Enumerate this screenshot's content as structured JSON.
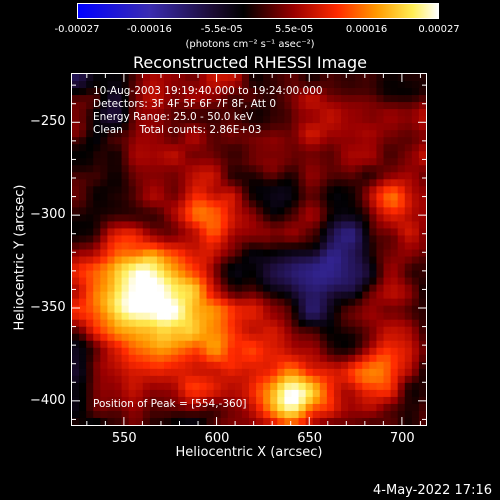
{
  "colorbar": {
    "ticks": [
      "-0.00027",
      "-0.00016",
      "-5.5e-05",
      "5.5e-05",
      "0.00016",
      "0.00027"
    ],
    "units": "(photons cm⁻² s⁻¹ asec⁻²)",
    "colors": [
      "#0000ff",
      "#000000",
      "#ff0000",
      "#ff9900",
      "#ffff88",
      "#ffffff"
    ]
  },
  "chart_data": {
    "type": "heatmap",
    "title": "Reconstructed RHESSI Image",
    "xlabel": "Heliocentric X (arcsec)",
    "ylabel": "Heliocentric Y (arcsec)",
    "xlim": [
      522,
      713
    ],
    "ylim": [
      -413,
      -224
    ],
    "x_ticks": [
      550,
      600,
      650,
      700
    ],
    "y_ticks": [
      -250,
      -300,
      -350,
      -400
    ],
    "value_range": [
      -0.00027,
      0.00027
    ],
    "colormap": "blue-black-red-yellow-white",
    "peak_position": [
      554,
      -360
    ],
    "info_lines": [
      "10-Aug-2003 19:19:40.000 to 19:24:00.000",
      "Detectors: 3F 4F 5F 6F 7F 8F, Att 0",
      "Energy Range: 25.0 - 50.0 keV",
      "Clean     Total counts: 2.86E+03"
    ],
    "peak_label": "Position of Peak = [554,-360]"
  },
  "footer": {
    "date": "4-May-2022 17:16"
  }
}
